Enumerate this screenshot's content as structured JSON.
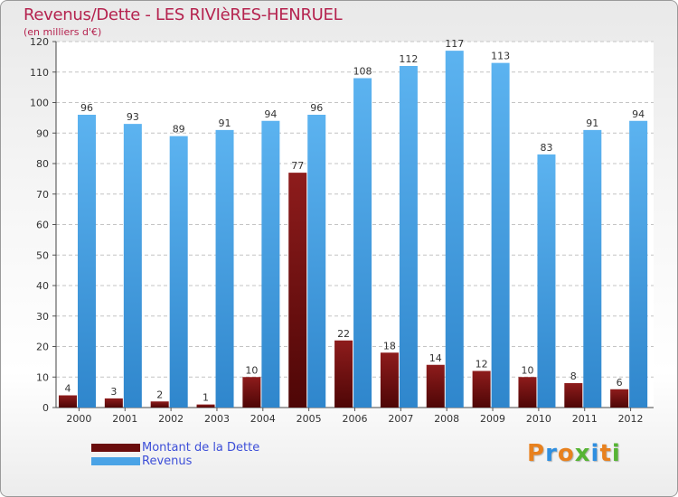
{
  "chart_data": {
    "type": "bar",
    "title": "Revenus/Dette - LES RIVIèRES-HENRUEL",
    "subtitle": "(en milliers d'€)",
    "categories": [
      "2000",
      "2001",
      "2002",
      "2003",
      "2004",
      "2005",
      "2006",
      "2007",
      "2008",
      "2009",
      "2010",
      "2011",
      "2012"
    ],
    "series": [
      {
        "name": "Montant de la Dette",
        "color": "#7a0f0f",
        "values": [
          4,
          3,
          2,
          1,
          10,
          77,
          22,
          18,
          14,
          12,
          10,
          8,
          6
        ]
      },
      {
        "name": "Revenus",
        "color": "#4aa3e6",
        "values": [
          96,
          93,
          89,
          91,
          94,
          96,
          108,
          112,
          117,
          113,
          83,
          91,
          94
        ]
      }
    ],
    "yticks": [
      0,
      10,
      20,
      30,
      40,
      50,
      60,
      70,
      80,
      90,
      100,
      110,
      120
    ],
    "ylim": [
      0,
      120
    ],
    "grid": true,
    "legend": "bottom-left"
  },
  "logo": {
    "letters": [
      "P",
      "r",
      "o",
      "x",
      "i",
      "t",
      "i"
    ]
  }
}
